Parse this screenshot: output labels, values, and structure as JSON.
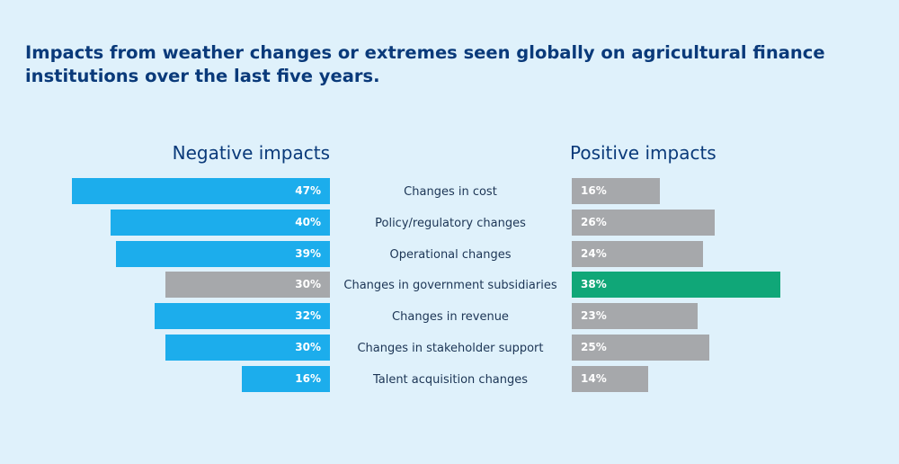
{
  "title": "Impacts from weather changes or extremes seen globally on agricultural finance institutions over the last five years.",
  "colors": {
    "background": "#dff1fb",
    "title": "#0a3a7a",
    "negative_bar": "#1cadec",
    "neutral_bar": "#a6a8ab",
    "highlight_bar": "#10a778",
    "bar_text": "#ffffff"
  },
  "chart_data": {
    "type": "bar",
    "orientation": "horizontal-diverging",
    "title": "Impacts from weather changes or extremes seen globally on agricultural finance institutions over the last five years.",
    "panels": {
      "negative": "Negative impacts",
      "positive": "Positive impacts"
    },
    "categories": [
      "Changes in cost",
      "Policy/regulatory changes",
      "Operational changes",
      "Changes in government subsidiaries",
      "Changes in revenue",
      "Changes in stakeholder support",
      "Talent acquisition changes"
    ],
    "series": [
      {
        "name": "Negative impacts",
        "values": [
          47,
          40,
          39,
          30,
          32,
          30,
          16
        ],
        "labels": [
          "47%",
          "40%",
          "39%",
          "30%",
          "32%",
          "30%",
          "16%"
        ],
        "colors": [
          "#1cadec",
          "#1cadec",
          "#1cadec",
          "#a6a8ab",
          "#1cadec",
          "#1cadec",
          "#1cadec"
        ]
      },
      {
        "name": "Positive impacts",
        "values": [
          16,
          26,
          24,
          38,
          23,
          25,
          14
        ],
        "labels": [
          "16%",
          "26%",
          "24%",
          "38%",
          "23%",
          "25%",
          "14%"
        ],
        "colors": [
          "#a6a8ab",
          "#a6a8ab",
          "#a6a8ab",
          "#10a778",
          "#a6a8ab",
          "#a6a8ab",
          "#a6a8ab"
        ]
      }
    ],
    "unit": "%"
  }
}
